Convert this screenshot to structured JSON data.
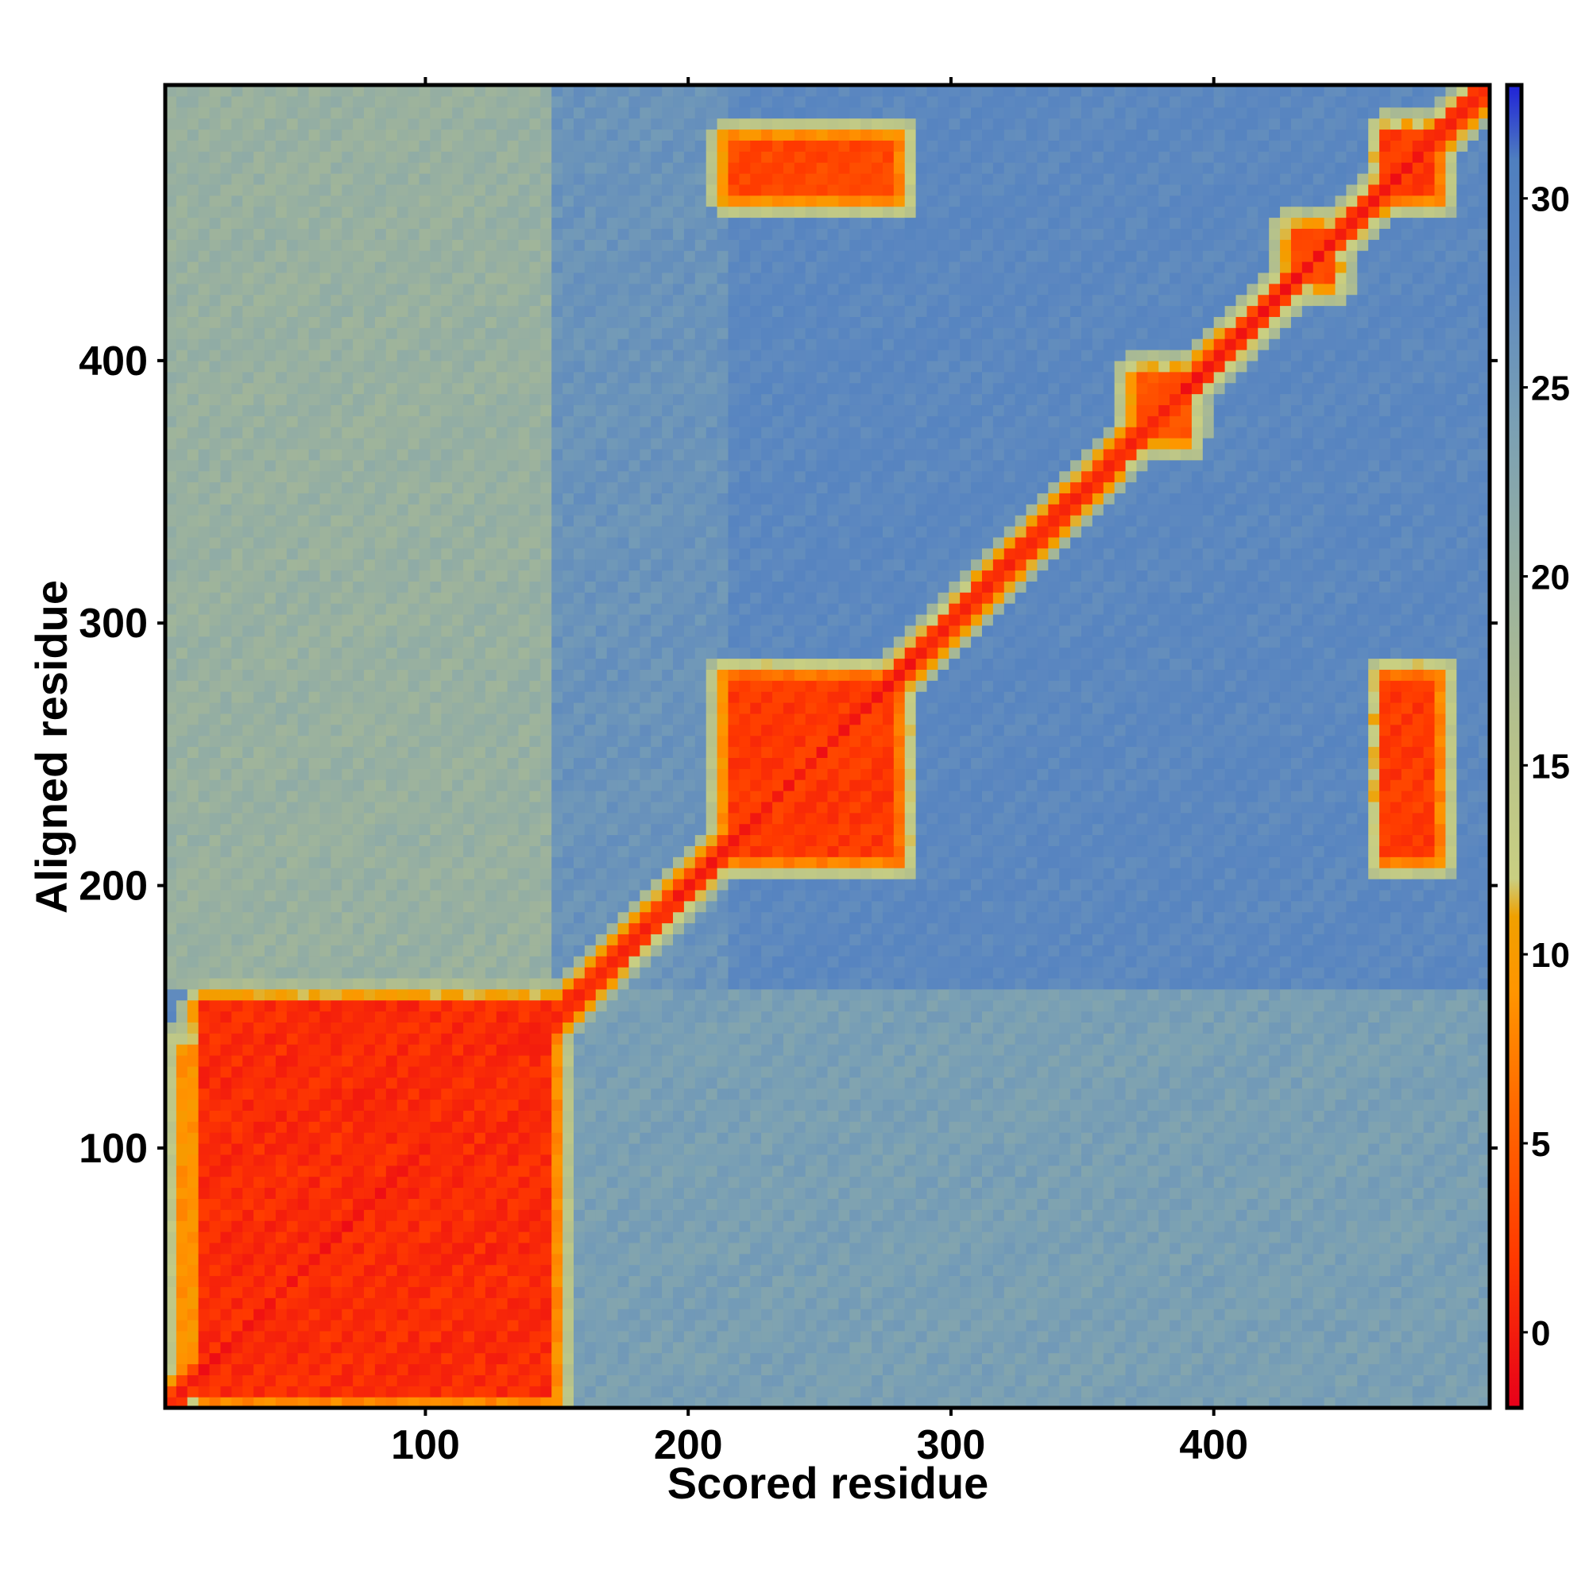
{
  "chart_data": {
    "type": "heatmap",
    "title": "",
    "xlabel": "Scored residue",
    "ylabel": "Aligned residue",
    "x_range": [
      1,
      505
    ],
    "y_range": [
      1,
      505
    ],
    "x_ticks": [
      100,
      200,
      300,
      400
    ],
    "y_ticks": [
      100,
      200,
      300,
      400
    ],
    "colorbar": {
      "range": [
        -2,
        33
      ],
      "ticks": [
        0,
        5,
        10,
        15,
        20,
        25,
        30
      ],
      "stops": [
        {
          "value": -2,
          "color": "#e8001a"
        },
        {
          "value": 2,
          "color": "#ff3a00"
        },
        {
          "value": 6,
          "color": "#ff6a00"
        },
        {
          "value": 9,
          "color": "#ff9500"
        },
        {
          "value": 11,
          "color": "#f0a000"
        },
        {
          "value": 12,
          "color": "#c9cf82"
        },
        {
          "value": 16,
          "color": "#b4c08c"
        },
        {
          "value": 20,
          "color": "#98b0a0"
        },
        {
          "value": 24,
          "color": "#7aa0b4"
        },
        {
          "value": 28,
          "color": "#5b87c0"
        },
        {
          "value": 31,
          "color": "#4f7fbf"
        },
        {
          "value": 33,
          "color": "#1f22d8"
        }
      ]
    },
    "background_value": 28,
    "diagonal_value": 0,
    "diagonal_halfwidth": 5,
    "low_error_blocks": [
      {
        "x": [
          15,
          148
        ],
        "y": [
          5,
          155
        ],
        "value": 1
      },
      {
        "x": [
          5,
          15
        ],
        "y": [
          10,
          140
        ],
        "value": 9
      },
      {
        "x": [
          215,
          280
        ],
        "y": [
          210,
          280
        ],
        "value": 2
      },
      {
        "x": [
          215,
          280
        ],
        "y": [
          462,
          485
        ],
        "value": 3
      },
      {
        "x": [
          465,
          485
        ],
        "y": [
          210,
          280
        ],
        "value": 2
      },
      {
        "x": [
          465,
          485
        ],
        "y": [
          462,
          487
        ],
        "value": 2
      },
      {
        "x": [
          430,
          445
        ],
        "y": [
          430,
          450
        ],
        "value": 3
      },
      {
        "x": [
          370,
          390
        ],
        "y": [
          370,
          395
        ],
        "value": 4
      }
    ],
    "medium_error_regions": [
      {
        "x": [
          1,
          150
        ],
        "y": [
          160,
          505
        ],
        "value": 20
      },
      {
        "x": [
          150,
          505
        ],
        "y": [
          1,
          160
        ],
        "value": 24
      },
      {
        "x": [
          150,
          215
        ],
        "y": [
          160,
          505
        ],
        "value": 26
      }
    ],
    "grid": false,
    "legend": "colorbar-right"
  }
}
